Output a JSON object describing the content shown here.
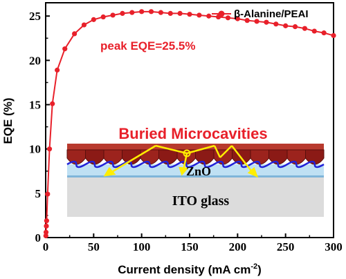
{
  "chart_data": {
    "type": "line",
    "xlabel": "Current density (mA cm",
    "xlabel_sup": "-2",
    "xlabel_close": ")",
    "ylabel": "EQE (%)",
    "xlim": [
      0,
      300
    ],
    "ylim": [
      0,
      26.5
    ],
    "x_ticks": [
      "0",
      "50",
      "100",
      "150",
      "200",
      "250",
      "300"
    ],
    "y_ticks": [
      "0",
      "5",
      "10",
      "15",
      "20",
      "25"
    ],
    "legend_position": "top-right",
    "series": [
      {
        "name": "β-Alanine/PEAI",
        "color": "#e8202a",
        "marker": "circle",
        "x": [
          0.2,
          0.4,
          0.7,
          1.0,
          2.0,
          4.0,
          7.0,
          12.0,
          20.0,
          30.0,
          40.0,
          50.0,
          60.0,
          70.0,
          80.0,
          90.0,
          100.0,
          110.0,
          120.0,
          130.0,
          140.0,
          150.0,
          160.0,
          170.0,
          180.0,
          190.0,
          200.0,
          210.0,
          220.0,
          230.0,
          240.0,
          250.0,
          260.0,
          270.0,
          280.0,
          290.0,
          300.0
        ],
        "y": [
          0.2,
          0.6,
          1.3,
          1.9,
          4.9,
          10.0,
          15.1,
          18.9,
          21.3,
          23.0,
          24.0,
          24.6,
          24.9,
          25.1,
          25.3,
          25.4,
          25.5,
          25.5,
          25.4,
          25.3,
          25.3,
          25.2,
          25.1,
          25.0,
          24.9,
          24.8,
          24.7,
          24.5,
          24.4,
          24.3,
          24.1,
          23.9,
          23.8,
          23.6,
          23.3,
          23.1,
          22.8
        ]
      }
    ],
    "annotations": {
      "peak": "peak EQE=25.5%"
    }
  },
  "inset": {
    "title": "Buried Microcavities",
    "layer_top": "ZnO",
    "layer_bottom": "ITO glass",
    "colors": {
      "perovskite": "#8b1a16",
      "perovskite_light": "#b83a2e",
      "zno": "#bfe0f3",
      "wave": "#2222d8",
      "substrate": "#dcdcdc",
      "rays": "#ffee00"
    }
  }
}
